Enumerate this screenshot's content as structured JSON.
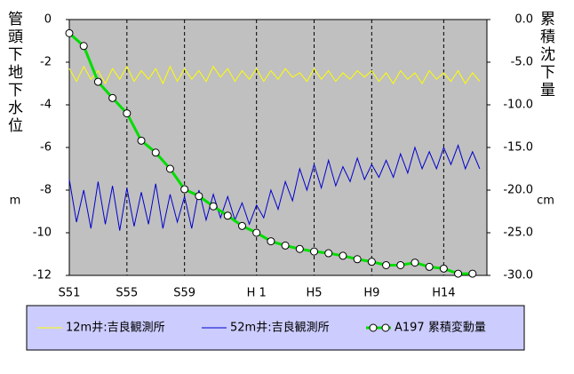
{
  "chart_data": {
    "type": "line",
    "y_label": "管頭下地下水位",
    "y_unit": "m",
    "y2_label": "累積沈下量",
    "y2_unit": "cm",
    "xlim": [
      1976,
      2005
    ],
    "xticks": [
      {
        "value": 1976,
        "label": "S51"
      },
      {
        "value": 1980,
        "label": "S55"
      },
      {
        "value": 1984,
        "label": "S59"
      },
      {
        "value": 1989,
        "label": "H 1"
      },
      {
        "value": 1993,
        "label": "H5"
      },
      {
        "value": 1997,
        "label": "H9"
      },
      {
        "value": 2002,
        "label": "H14"
      }
    ],
    "ylim": [
      -12,
      0
    ],
    "yticks": [
      0,
      -2,
      -4,
      -6,
      -8,
      -10,
      -12
    ],
    "y2lim": [
      -30,
      0
    ],
    "y2ticks": [
      {
        "value": 0,
        "label": "0.0"
      },
      {
        "value": -5,
        "label": "-5.0"
      },
      {
        "value": -10,
        "label": "-10.0"
      },
      {
        "value": -15,
        "label": "-15.0"
      },
      {
        "value": -20,
        "label": "-20.0"
      },
      {
        "value": -25,
        "label": "-25.0"
      },
      {
        "value": -30,
        "label": "-30.0"
      }
    ],
    "grid": true,
    "legend": "bottom",
    "series": [
      {
        "name": "12m井:吉良観測所",
        "color": "#ffff00",
        "markers": false,
        "x": [
          1976,
          1976.5,
          1977,
          1977.5,
          1978,
          1978.5,
          1979,
          1979.5,
          1980,
          1980.5,
          1981,
          1981.5,
          1982,
          1982.5,
          1983,
          1983.5,
          1984,
          1984.5,
          1985,
          1985.5,
          1986,
          1986.5,
          1987,
          1987.5,
          1988,
          1988.5,
          1989,
          1989.5,
          1990,
          1990.5,
          1991,
          1991.5,
          1992,
          1992.5,
          1993,
          1993.5,
          1994,
          1994.5,
          1995,
          1995.5,
          1996,
          1996.5,
          1997,
          1997.5,
          1998,
          1998.5,
          1999,
          1999.5,
          2000,
          2000.5,
          2001,
          2001.5,
          2002,
          2002.5,
          2003,
          2003.5,
          2004,
          2004.5
        ],
        "values": [
          -2.3,
          -2.9,
          -2.2,
          -2.8,
          -2.4,
          -3.0,
          -2.3,
          -2.8,
          -2.2,
          -2.9,
          -2.4,
          -2.8,
          -2.3,
          -3.0,
          -2.2,
          -2.9,
          -2.3,
          -2.8,
          -2.4,
          -2.9,
          -2.2,
          -2.7,
          -2.3,
          -2.9,
          -2.4,
          -2.8,
          -2.3,
          -2.9,
          -2.4,
          -2.8,
          -2.3,
          -2.7,
          -2.5,
          -2.9,
          -2.3,
          -2.8,
          -2.4,
          -2.9,
          -2.5,
          -2.8,
          -2.4,
          -2.7,
          -2.4,
          -2.9,
          -2.5,
          -3.0,
          -2.4,
          -2.8,
          -2.5,
          -3.0,
          -2.4,
          -2.8,
          -2.5,
          -2.9,
          -2.4,
          -3.0,
          -2.5,
          -2.9
        ]
      },
      {
        "name": "52m井:吉良観測所",
        "color": "#0000cc",
        "markers": false,
        "x": [
          1976,
          1976.5,
          1977,
          1977.5,
          1978,
          1978.5,
          1979,
          1979.5,
          1980,
          1980.5,
          1981,
          1981.5,
          1982,
          1982.5,
          1983,
          1983.5,
          1984,
          1984.5,
          1985,
          1985.5,
          1986,
          1986.5,
          1987,
          1987.5,
          1988,
          1988.5,
          1989,
          1989.5,
          1990,
          1990.5,
          1991,
          1991.5,
          1992,
          1992.5,
          1993,
          1993.5,
          1994,
          1994.5,
          1995,
          1995.5,
          1996,
          1996.5,
          1997,
          1997.5,
          1998,
          1998.5,
          1999,
          1999.5,
          2000,
          2000.5,
          2001,
          2001.5,
          2002,
          2002.5,
          2003,
          2003.5,
          2004,
          2004.5
        ],
        "values": [
          -7.5,
          -9.5,
          -8.0,
          -9.8,
          -7.6,
          -9.6,
          -7.8,
          -9.9,
          -7.9,
          -9.7,
          -8.1,
          -9.6,
          -7.7,
          -9.8,
          -8.2,
          -9.5,
          -8.3,
          -9.8,
          -8.0,
          -9.4,
          -8.2,
          -9.3,
          -8.3,
          -9.4,
          -8.6,
          -9.6,
          -8.7,
          -9.3,
          -8.0,
          -8.9,
          -7.6,
          -8.5,
          -7.0,
          -8.0,
          -6.8,
          -7.9,
          -6.6,
          -7.8,
          -6.9,
          -7.6,
          -6.5,
          -7.5,
          -6.8,
          -7.4,
          -6.6,
          -7.4,
          -6.3,
          -7.2,
          -6.0,
          -7.0,
          -6.2,
          -7.0,
          -6.0,
          -6.8,
          -5.9,
          -7.0,
          -6.2,
          -7.0
        ]
      },
      {
        "name": "A197 累積変動量",
        "color": "#00dd00",
        "markers": true,
        "axis": "y2",
        "x": [
          1976,
          1977,
          1978,
          1979,
          1980,
          1981,
          1982,
          1983,
          1984,
          1985,
          1986,
          1987,
          1988,
          1989,
          1990,
          1991,
          1992,
          1993,
          1994,
          1995,
          1996,
          1997,
          1998,
          1999,
          2000,
          2001,
          2002,
          2003,
          2004
        ],
        "values": [
          -1.6,
          -3.1,
          -7.3,
          -9.2,
          -11.0,
          -14.2,
          -15.6,
          -17.5,
          -19.9,
          -20.7,
          -21.9,
          -23.0,
          -24.2,
          -25.0,
          -26.0,
          -26.5,
          -26.9,
          -27.2,
          -27.4,
          -27.7,
          -28.1,
          -28.4,
          -28.8,
          -28.8,
          -28.5,
          -29.0,
          -29.2,
          -29.8,
          -29.8
        ]
      }
    ]
  }
}
